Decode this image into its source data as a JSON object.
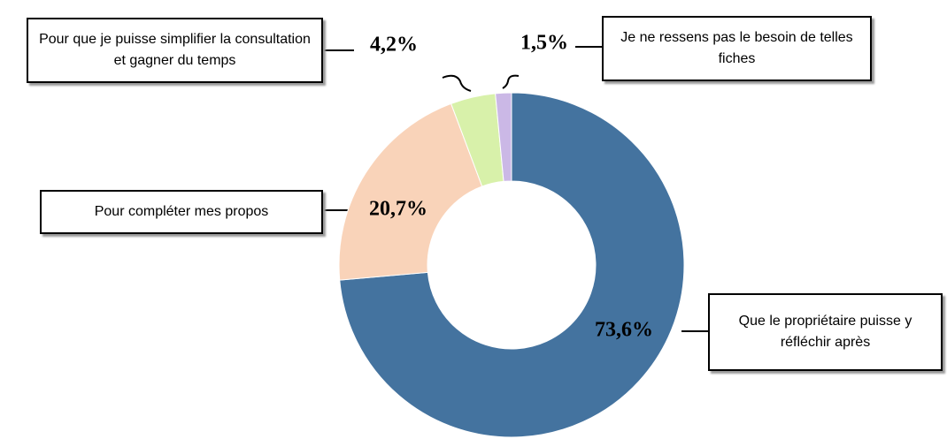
{
  "chart_data": {
    "type": "donut",
    "categories": [
      "Que le propriétaire puisse y réfléchir après",
      "Pour compléter mes propos",
      "Pour que je puisse simplifier la consultation et gagner du temps",
      "Je ne ressens pas le besoin de telles fiches"
    ],
    "values": [
      73.6,
      20.7,
      4.2,
      1.5
    ],
    "value_labels": [
      "73,6%",
      "20,7%",
      "4,2%",
      "1,5%"
    ],
    "colors": [
      "#44739f",
      "#f9d3b9",
      "#d8f1aa",
      "#cbb8e6"
    ]
  }
}
